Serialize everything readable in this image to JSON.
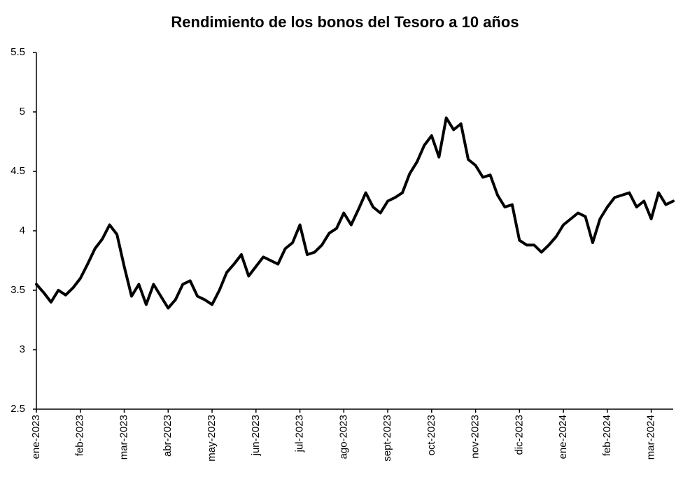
{
  "chart_data": {
    "type": "line",
    "title": "Rendimiento de los bonos del Tesoro a 10 años",
    "categories": [
      "ene-2023",
      null,
      null,
      null,
      null,
      null,
      "feb-2023",
      null,
      null,
      null,
      null,
      null,
      "mar-2023",
      null,
      null,
      null,
      null,
      null,
      "abr-2023",
      null,
      null,
      null,
      null,
      null,
      "may-2023",
      null,
      null,
      null,
      null,
      null,
      "jun-2023",
      null,
      null,
      null,
      null,
      null,
      "jul-2023",
      null,
      null,
      null,
      null,
      null,
      "ago-2023",
      null,
      null,
      null,
      null,
      null,
      "sept-2023",
      null,
      null,
      null,
      null,
      null,
      "oct-2023",
      null,
      null,
      null,
      null,
      null,
      "nov-2023",
      null,
      null,
      null,
      null,
      null,
      "dic-2023",
      null,
      null,
      null,
      null,
      null,
      "ene-2024",
      null,
      null,
      null,
      null,
      null,
      "feb-2024",
      null,
      null,
      null,
      null,
      null,
      "mar-2024",
      null,
      null,
      null
    ],
    "series": [
      {
        "color": "#000000",
        "values": [
          3.55,
          3.48,
          3.4,
          3.5,
          3.46,
          3.52,
          3.6,
          3.72,
          3.85,
          3.93,
          4.05,
          3.97,
          3.7,
          3.45,
          3.55,
          3.38,
          3.55,
          3.45,
          3.35,
          3.42,
          3.55,
          3.58,
          3.45,
          3.42,
          3.38,
          3.5,
          3.65,
          3.72,
          3.8,
          3.62,
          3.7,
          3.78,
          3.75,
          3.72,
          3.85,
          3.9,
          4.05,
          3.8,
          3.82,
          3.88,
          3.98,
          4.02,
          4.15,
          4.05,
          4.18,
          4.32,
          4.2,
          4.15,
          4.25,
          4.28,
          4.32,
          4.48,
          4.58,
          4.72,
          4.8,
          4.62,
          4.95,
          4.85,
          4.9,
          4.6,
          4.55,
          4.45,
          4.47,
          4.3,
          4.2,
          4.22,
          3.92,
          3.88,
          3.88,
          3.82,
          3.88,
          3.95,
          4.05,
          4.1,
          4.15,
          4.12,
          3.9,
          4.1,
          4.2,
          4.28,
          4.3,
          4.32,
          4.2,
          4.25,
          4.1,
          4.32,
          4.22,
          4.25
        ]
      }
    ],
    "ylim": [
      2.5,
      5.5
    ],
    "yticks": [
      2.5,
      3,
      3.5,
      4,
      4.5,
      5,
      5.5
    ],
    "grid": false
  }
}
